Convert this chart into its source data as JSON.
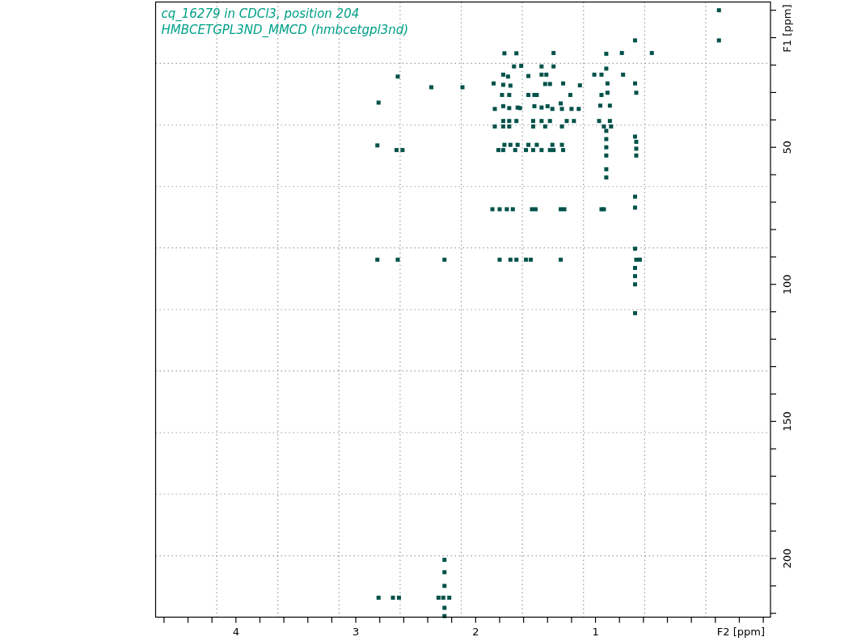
{
  "chart_data": {
    "type": "scatter",
    "title": "cq_16279 in CDCl3, position 204",
    "subtitle": "HMBCETGPL3ND_MMCD (hmbcetgpl3nd)",
    "xlabel": "F2 [ppm]",
    "ylabel": "F1 [ppm]",
    "xlim": [
      4.67,
      -0.46
    ],
    "ylim": [
      221.4,
      -3.0
    ],
    "xticks": [
      {
        "value": 4.6,
        "label": null
      },
      {
        "value": 4.4,
        "label": null
      },
      {
        "value": 4.2,
        "label": null
      },
      4,
      {
        "value": 3.8,
        "label": null
      },
      {
        "value": 3.6,
        "label": null
      },
      {
        "value": 3.4,
        "label": null
      },
      {
        "value": 3.2,
        "label": null
      },
      3,
      {
        "value": 2.8,
        "label": null
      },
      {
        "value": 2.6,
        "label": null
      },
      {
        "value": 2.4,
        "label": null
      },
      {
        "value": 2.2,
        "label": null
      },
      2,
      {
        "value": 1.8,
        "label": null
      },
      {
        "value": 1.6,
        "label": null
      },
      {
        "value": 1.4,
        "label": null
      },
      {
        "value": 1.2,
        "label": null
      },
      1,
      {
        "value": 0.8,
        "label": null
      },
      {
        "value": 0.6,
        "label": null
      },
      {
        "value": 0.4,
        "label": null
      },
      {
        "value": 0.2,
        "label": null
      },
      {
        "value": 0,
        "label": null
      },
      {
        "value": -0.2,
        "label": null
      },
      {
        "value": -0.4,
        "label": null
      }
    ],
    "yticks": [
      {
        "value": 0,
        "label": null
      },
      {
        "value": 10,
        "label": null
      },
      {
        "value": 20,
        "label": null
      },
      {
        "value": 30,
        "label": null
      },
      {
        "value": 40,
        "label": null
      },
      50,
      {
        "value": 60,
        "label": null
      },
      {
        "value": 70,
        "label": null
      },
      {
        "value": 80,
        "label": null
      },
      {
        "value": 90,
        "label": null
      },
      100,
      {
        "value": 110,
        "label": null
      },
      {
        "value": 120,
        "label": null
      },
      {
        "value": 130,
        "label": null
      },
      {
        "value": 140,
        "label": null
      },
      150,
      {
        "value": 160,
        "label": null
      },
      {
        "value": 170,
        "label": null
      },
      {
        "value": 180,
        "label": null
      },
      {
        "value": 190,
        "label": null
      },
      200,
      {
        "value": 210,
        "label": null
      },
      {
        "value": 220,
        "label": null
      }
    ],
    "ref_lines": [
      {
        "axis": "x",
        "value": 4.16,
        "color": "#999999",
        "line_style": "dotted"
      },
      {
        "axis": "x",
        "value": 3.65,
        "color": "#999999",
        "line_style": "dotted"
      },
      {
        "axis": "x",
        "value": 3.14,
        "color": "#999999",
        "line_style": "dotted"
      },
      {
        "axis": "x",
        "value": 2.63,
        "color": "#999999",
        "line_style": "dotted"
      },
      {
        "axis": "x",
        "value": 2.12,
        "color": "#999999",
        "line_style": "dotted"
      },
      {
        "axis": "x",
        "value": 1.61,
        "color": "#999999",
        "line_style": "dotted"
      },
      {
        "axis": "x",
        "value": 1.1,
        "color": "#999999",
        "line_style": "dotted"
      },
      {
        "axis": "x",
        "value": 0.59,
        "color": "#999999",
        "line_style": "dotted"
      },
      {
        "axis": "x",
        "value": 0.08,
        "color": "#999999",
        "line_style": "dotted"
      },
      {
        "axis": "y",
        "value": 19.4,
        "color": "#999999",
        "line_style": "dotted"
      },
      {
        "axis": "y",
        "value": 41.9,
        "color": "#999999",
        "line_style": "dotted"
      },
      {
        "axis": "y",
        "value": 64.3,
        "color": "#999999",
        "line_style": "dotted"
      },
      {
        "axis": "y",
        "value": 86.7,
        "color": "#999999",
        "line_style": "dotted"
      },
      {
        "axis": "y",
        "value": 109.2,
        "color": "#999999",
        "line_style": "dotted"
      },
      {
        "axis": "y",
        "value": 131.6,
        "color": "#999999",
        "line_style": "dotted"
      },
      {
        "axis": "y",
        "value": 154.1,
        "color": "#999999",
        "line_style": "dotted"
      },
      {
        "axis": "y",
        "value": 176.5,
        "color": "#999999",
        "line_style": "dotted"
      },
      {
        "axis": "y",
        "value": 199.0,
        "color": "#999999",
        "line_style": "dotted"
      }
    ],
    "marker": "square",
    "color": "#00524a",
    "x": [
      -0.03,
      -0.03,
      0.67,
      0.53,
      0.78,
      0.91,
      1.35,
      1.76,
      1.66,
      1.68,
      1.62,
      1.45,
      1.35,
      0.91,
      2.65,
      1.77,
      1.73,
      1.56,
      1.45,
      1.41,
      1.01,
      0.95,
      0.77,
      2.37,
      2.11,
      1.85,
      1.77,
      1.71,
      1.42,
      1.38,
      1.27,
      1.13,
      0.9,
      0.67,
      0.66,
      2.81,
      1.78,
      1.72,
      1.56,
      1.51,
      1.49,
      1.21,
      0.95,
      0.9,
      1.84,
      1.77,
      1.72,
      1.65,
      1.63,
      1.51,
      1.45,
      1.4,
      1.36,
      1.29,
      1.28,
      1.2,
      1.14,
      0.96,
      0.88,
      1.77,
      1.72,
      1.66,
      1.52,
      1.45,
      1.38,
      1.24,
      1.18,
      0.97,
      0.88,
      1.84,
      1.77,
      1.72,
      1.52,
      1.42,
      1.28,
      0.93,
      0.87,
      0.67,
      0.91,
      0.91,
      0.91,
      0.91,
      0.91,
      0.91,
      0.66,
      0.66,
      0.66,
      2.82,
      2.66,
      2.61,
      1.76,
      1.71,
      1.65,
      1.56,
      1.49,
      1.36,
      1.28,
      1.81,
      1.77,
      1.67,
      1.58,
      1.52,
      1.45,
      1.38,
      1.35,
      1.27,
      1.86,
      1.8,
      1.74,
      1.69,
      1.53,
      1.5,
      1.29,
      1.26,
      0.95,
      0.93,
      0.67,
      0.67,
      2.82,
      2.65,
      2.26,
      1.8,
      1.71,
      1.66,
      1.58,
      1.54,
      1.29,
      0.66,
      0.63,
      0.67,
      0.67,
      0.67,
      0.67,
      0.67,
      2.81,
      2.69,
      2.64,
      2.31,
      2.27,
      2.22,
      2.26,
      2.26,
      2.26,
      2.26,
      2.26
    ],
    "values": [
      0.0,
      11.0,
      11.0,
      15.6,
      15.6,
      15.9,
      15.6,
      15.7,
      15.7,
      20.5,
      20.3,
      20.5,
      20.5,
      21.3,
      24.2,
      23.5,
      24.2,
      24.0,
      23.5,
      23.5,
      23.5,
      23.5,
      23.5,
      28.1,
      28.1,
      26.7,
      27.2,
      27.5,
      26.9,
      26.9,
      26.7,
      27.4,
      26.7,
      26.7,
      30.1,
      33.7,
      30.9,
      30.9,
      30.9,
      30.9,
      30.9,
      30.9,
      30.9,
      30.1,
      36.0,
      35.0,
      35.7,
      35.5,
      35.7,
      35.0,
      35.5,
      35.0,
      36.0,
      34.0,
      36.0,
      36.0,
      36.0,
      34.8,
      34.8,
      40.4,
      40.4,
      40.4,
      40.4,
      40.4,
      40.4,
      40.4,
      40.4,
      40.4,
      40.4,
      42.4,
      42.4,
      42.4,
      42.4,
      42.4,
      42.4,
      42.4,
      42.4,
      46.1,
      44,
      47,
      50,
      53,
      58,
      61,
      48,
      50.5,
      53,
      49.3,
      51.0,
      51.0,
      49.1,
      49.1,
      49.1,
      49.1,
      49.1,
      49.1,
      49.1,
      51.0,
      51.0,
      51.0,
      51.0,
      51.0,
      51.0,
      51.0,
      51.0,
      51.0,
      72.6,
      72.6,
      72.6,
      72.6,
      72.6,
      72.6,
      72.6,
      72.6,
      72.6,
      72.6,
      68,
      72,
      91.0,
      91.0,
      91.0,
      91.0,
      91.0,
      91.0,
      91.0,
      91.0,
      91.0,
      91.0,
      91.0,
      87,
      94,
      97,
      100,
      110.5,
      214.3,
      214.3,
      214.3,
      214.3,
      214.3,
      214.3,
      200.5,
      205,
      210,
      218,
      221
    ]
  }
}
